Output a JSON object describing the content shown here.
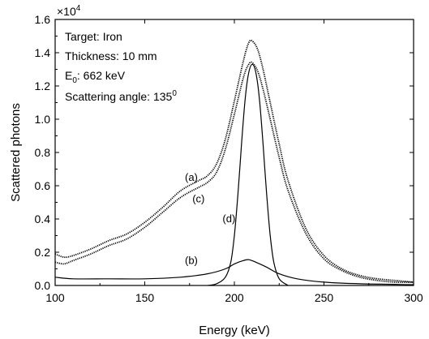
{
  "chart_data": {
    "type": "line",
    "xlabel": "Energy (keV)",
    "ylabel": "Scattered photons",
    "y_multiplier": "×10",
    "y_multiplier_exp": "4",
    "xlim": [
      100,
      300
    ],
    "ylim": [
      0,
      1.6
    ],
    "xticks": [
      100,
      150,
      200,
      250,
      300
    ],
    "xtick_labels": [
      "100",
      "150",
      "200",
      "250",
      "300"
    ],
    "yticks": [
      0,
      0.2,
      0.4,
      0.6,
      0.8,
      1.0,
      1.2,
      1.4,
      1.6
    ],
    "ytick_labels": [
      "0.0",
      "0.2",
      "0.4",
      "0.6",
      "0.8",
      "1.0",
      "1.2",
      "1.4",
      "1.6"
    ],
    "annotations": {
      "target": "Target: Iron",
      "thickness": "Thickness: 10 mm",
      "energy_prefix": "E",
      "energy_sub": "0",
      "energy_suffix": ": 662 keV",
      "angle": "Scattering angle: 135",
      "angle_sup": "0"
    },
    "series": [
      {
        "name": "(a)",
        "style": "dotted",
        "x": [
          100,
          105,
          110,
          120,
          130,
          140,
          150,
          160,
          170,
          180,
          185,
          190,
          195,
          200,
          205,
          208,
          210,
          213,
          216,
          220,
          225,
          230,
          240,
          250,
          260,
          270,
          280,
          290,
          300
        ],
        "y": [
          0.19,
          0.17,
          0.18,
          0.22,
          0.27,
          0.31,
          0.38,
          0.47,
          0.57,
          0.63,
          0.66,
          0.73,
          0.88,
          1.11,
          1.35,
          1.46,
          1.47,
          1.42,
          1.3,
          1.1,
          0.85,
          0.63,
          0.34,
          0.18,
          0.1,
          0.06,
          0.04,
          0.03,
          0.02
        ],
        "label_at": [
          176,
          0.63
        ]
      },
      {
        "name": "(c)",
        "style": "dotted",
        "x": [
          100,
          105,
          110,
          120,
          130,
          140,
          150,
          160,
          170,
          180,
          185,
          190,
          195,
          200,
          205,
          208,
          210,
          213,
          216,
          220,
          225,
          230,
          240,
          250,
          260,
          270,
          280,
          290,
          300
        ],
        "y": [
          0.14,
          0.13,
          0.15,
          0.19,
          0.24,
          0.28,
          0.35,
          0.44,
          0.53,
          0.59,
          0.62,
          0.68,
          0.82,
          1.03,
          1.25,
          1.33,
          1.34,
          1.29,
          1.18,
          1.0,
          0.77,
          0.57,
          0.31,
          0.16,
          0.09,
          0.05,
          0.03,
          0.02,
          0.02
        ],
        "label_at": [
          180,
          0.5
        ]
      },
      {
        "name": "(d)",
        "style": "solid",
        "x": [
          185,
          190,
          195,
          198,
          200,
          202,
          204,
          206,
          208,
          210,
          212,
          214,
          216,
          218,
          220,
          222,
          225,
          230
        ],
        "y": [
          0.0,
          0.01,
          0.05,
          0.14,
          0.3,
          0.55,
          0.85,
          1.12,
          1.28,
          1.33,
          1.28,
          1.12,
          0.85,
          0.55,
          0.3,
          0.14,
          0.04,
          0.0
        ],
        "label_at": [
          197,
          0.38
        ]
      },
      {
        "name": "(b)",
        "style": "solid",
        "x": [
          100,
          110,
          130,
          150,
          170,
          185,
          195,
          200,
          205,
          208,
          212,
          218,
          225,
          235,
          250,
          270,
          300
        ],
        "y": [
          0.05,
          0.04,
          0.04,
          0.04,
          0.05,
          0.07,
          0.1,
          0.13,
          0.15,
          0.155,
          0.14,
          0.11,
          0.07,
          0.04,
          0.02,
          0.01,
          0.005
        ],
        "label_at": [
          176,
          0.13
        ]
      }
    ]
  }
}
